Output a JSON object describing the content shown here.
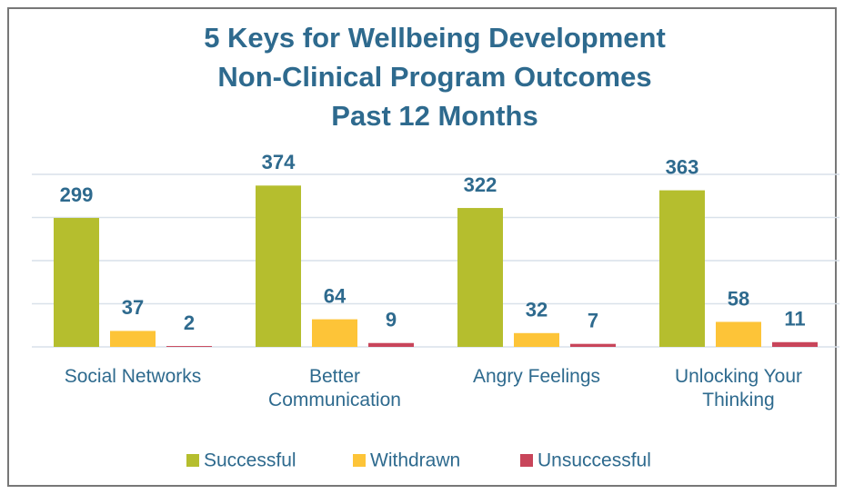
{
  "chart_data": {
    "type": "bar",
    "title_lines": [
      "5 Keys for Wellbeing Development",
      "Non-Clinical Program Outcomes",
      "Past 12 Months"
    ],
    "categories": [
      "Social Networks",
      "Better Communication",
      "Angry Feelings",
      "Unlocking Your Thinking"
    ],
    "series": [
      {
        "name": "Successful",
        "color": "#b5be2e",
        "values": [
          299,
          374,
          322,
          363
        ]
      },
      {
        "name": "Withdrawn",
        "color": "#fdc438",
        "values": [
          37,
          64,
          32,
          58
        ]
      },
      {
        "name": "Unsuccessful",
        "color": "#c8455a",
        "values": [
          2,
          9,
          7,
          11
        ]
      }
    ],
    "ylim": [
      0,
      400
    ],
    "yticks": [
      0,
      100,
      200,
      300,
      400
    ],
    "grid": true,
    "legend": "bottom"
  }
}
